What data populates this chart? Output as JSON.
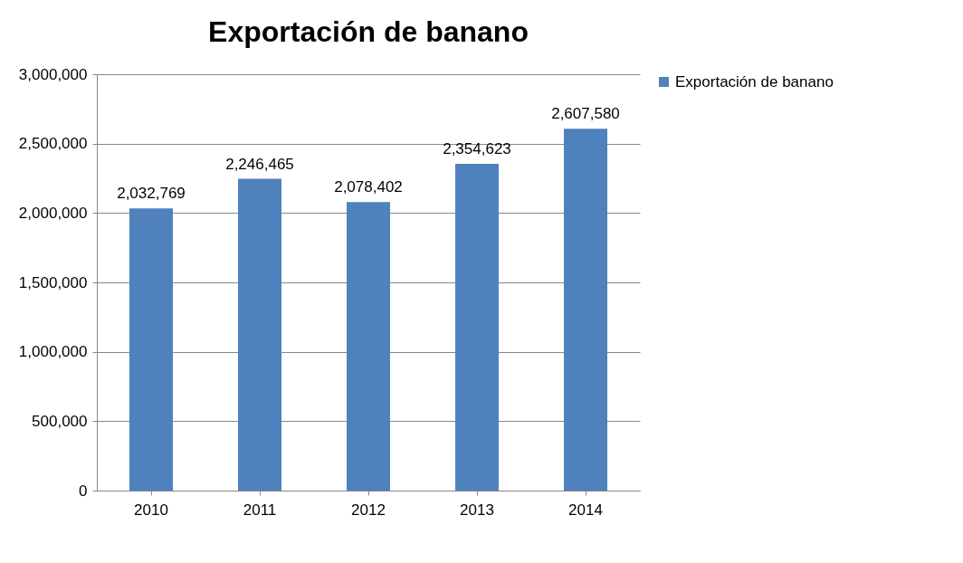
{
  "chart_data": {
    "type": "bar",
    "title": "Exportación de banano",
    "categories": [
      "2010",
      "2011",
      "2012",
      "2013",
      "2014"
    ],
    "series": [
      {
        "name": "Exportación de banano",
        "color": "#4f81bd",
        "values": [
          2032769,
          2246465,
          2078402,
          2354623,
          2607580
        ],
        "value_labels": [
          "2,032,769",
          "2,246,465",
          "2,078,402",
          "2,354,623",
          "2,607,580"
        ]
      }
    ],
    "ylim": [
      0,
      3000000
    ],
    "yticks": [
      0,
      {
        "value": 500000,
        "label": "500,000"
      },
      {
        "value": 1000000,
        "label": "1,000,000"
      },
      {
        "value": 1500000,
        "label": "1,500,000"
      },
      {
        "value": 2000000,
        "label": "2,000,000"
      },
      {
        "value": 2500000,
        "label": "2,500,000"
      },
      {
        "value": 3000000,
        "label": "3,000,000"
      }
    ],
    "grid": "y",
    "legend": "right"
  }
}
